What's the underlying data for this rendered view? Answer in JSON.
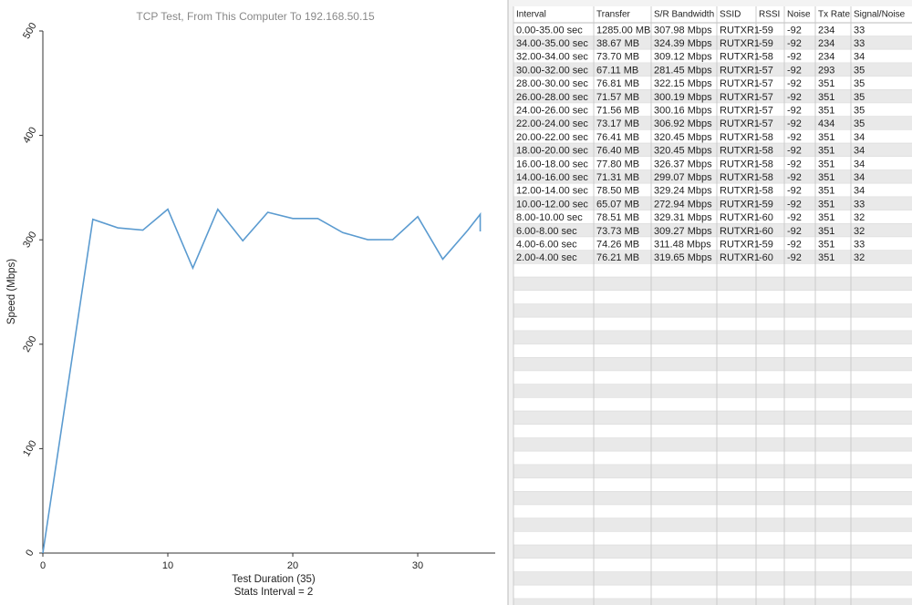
{
  "chart_data": {
    "type": "line",
    "title": "TCP Test,  From This Computer To 192.168.50.15",
    "x_label": "Test Duration (35)",
    "annotation": "Stats Interval = 2",
    "y_label": "Speed (Mbps)",
    "x": [
      0,
      4,
      6,
      8,
      10,
      12,
      14,
      16,
      18,
      20,
      22,
      24,
      26,
      28,
      30,
      32,
      34,
      35,
      35
    ],
    "values": [
      0,
      319.65,
      311.48,
      309.27,
      329.31,
      272.94,
      329.24,
      299.07,
      326.37,
      320.45,
      320.45,
      306.92,
      300.16,
      300.19,
      322.15,
      281.45,
      309.12,
      324.39,
      307.98
    ],
    "color": "#5b9bd0",
    "xlim": [
      0,
      36.2
    ],
    "xticks": [
      0,
      10,
      20,
      30
    ],
    "ylim": [
      0,
      500
    ],
    "yticks": [
      0,
      100,
      200,
      300,
      400,
      500
    ]
  },
  "table": {
    "columns": [
      "Interval",
      "Transfer",
      "S/R Bandwidth",
      "SSID",
      "RSSI",
      "Noise",
      "Tx Rate",
      "Signal/Noise"
    ],
    "rows": [
      [
        "0.00-35.00 sec",
        "1285.00 MB",
        "307.98 Mbps",
        "RUTXR1",
        "-59",
        "-92",
        "234",
        "33"
      ],
      [
        "34.00-35.00 sec",
        "38.67 MB",
        "324.39 Mbps",
        "RUTXR1",
        "-59",
        "-92",
        "234",
        "33"
      ],
      [
        "32.00-34.00 sec",
        "73.70 MB",
        "309.12 Mbps",
        "RUTXR1",
        "-58",
        "-92",
        "234",
        "34"
      ],
      [
        "30.00-32.00 sec",
        "67.11 MB",
        "281.45 Mbps",
        "RUTXR1",
        "-57",
        "-92",
        "293",
        "35"
      ],
      [
        "28.00-30.00 sec",
        "76.81 MB",
        "322.15 Mbps",
        "RUTXR1",
        "-57",
        "-92",
        "351",
        "35"
      ],
      [
        "26.00-28.00 sec",
        "71.57 MB",
        "300.19 Mbps",
        "RUTXR1",
        "-57",
        "-92",
        "351",
        "35"
      ],
      [
        "24.00-26.00 sec",
        "71.56 MB",
        "300.16 Mbps",
        "RUTXR1",
        "-57",
        "-92",
        "351",
        "35"
      ],
      [
        "22.00-24.00 sec",
        "73.17 MB",
        "306.92 Mbps",
        "RUTXR1",
        "-57",
        "-92",
        "434",
        "35"
      ],
      [
        "20.00-22.00 sec",
        "76.41 MB",
        "320.45 Mbps",
        "RUTXR1",
        "-58",
        "-92",
        "351",
        "34"
      ],
      [
        "18.00-20.00 sec",
        "76.40 MB",
        "320.45 Mbps",
        "RUTXR1",
        "-58",
        "-92",
        "351",
        "34"
      ],
      [
        "16.00-18.00 sec",
        "77.80 MB",
        "326.37 Mbps",
        "RUTXR1",
        "-58",
        "-92",
        "351",
        "34"
      ],
      [
        "14.00-16.00 sec",
        "71.31 MB",
        "299.07 Mbps",
        "RUTXR1",
        "-58",
        "-92",
        "351",
        "34"
      ],
      [
        "12.00-14.00 sec",
        "78.50 MB",
        "329.24 Mbps",
        "RUTXR1",
        "-58",
        "-92",
        "351",
        "34"
      ],
      [
        "10.00-12.00 sec",
        "65.07 MB",
        "272.94 Mbps",
        "RUTXR1",
        "-59",
        "-92",
        "351",
        "33"
      ],
      [
        "8.00-10.00 sec",
        "78.51 MB",
        "329.31 Mbps",
        "RUTXR1",
        "-60",
        "-92",
        "351",
        "32"
      ],
      [
        "6.00-8.00 sec",
        "73.73 MB",
        "309.27 Mbps",
        "RUTXR1",
        "-60",
        "-92",
        "351",
        "32"
      ],
      [
        "4.00-6.00 sec",
        "74.26 MB",
        "311.48 Mbps",
        "RUTXR1",
        "-59",
        "-92",
        "351",
        "33"
      ],
      [
        "2.00-4.00 sec",
        "76.21 MB",
        "319.65 Mbps",
        "RUTXR1",
        "-60",
        "-92",
        "351",
        "32"
      ]
    ]
  }
}
